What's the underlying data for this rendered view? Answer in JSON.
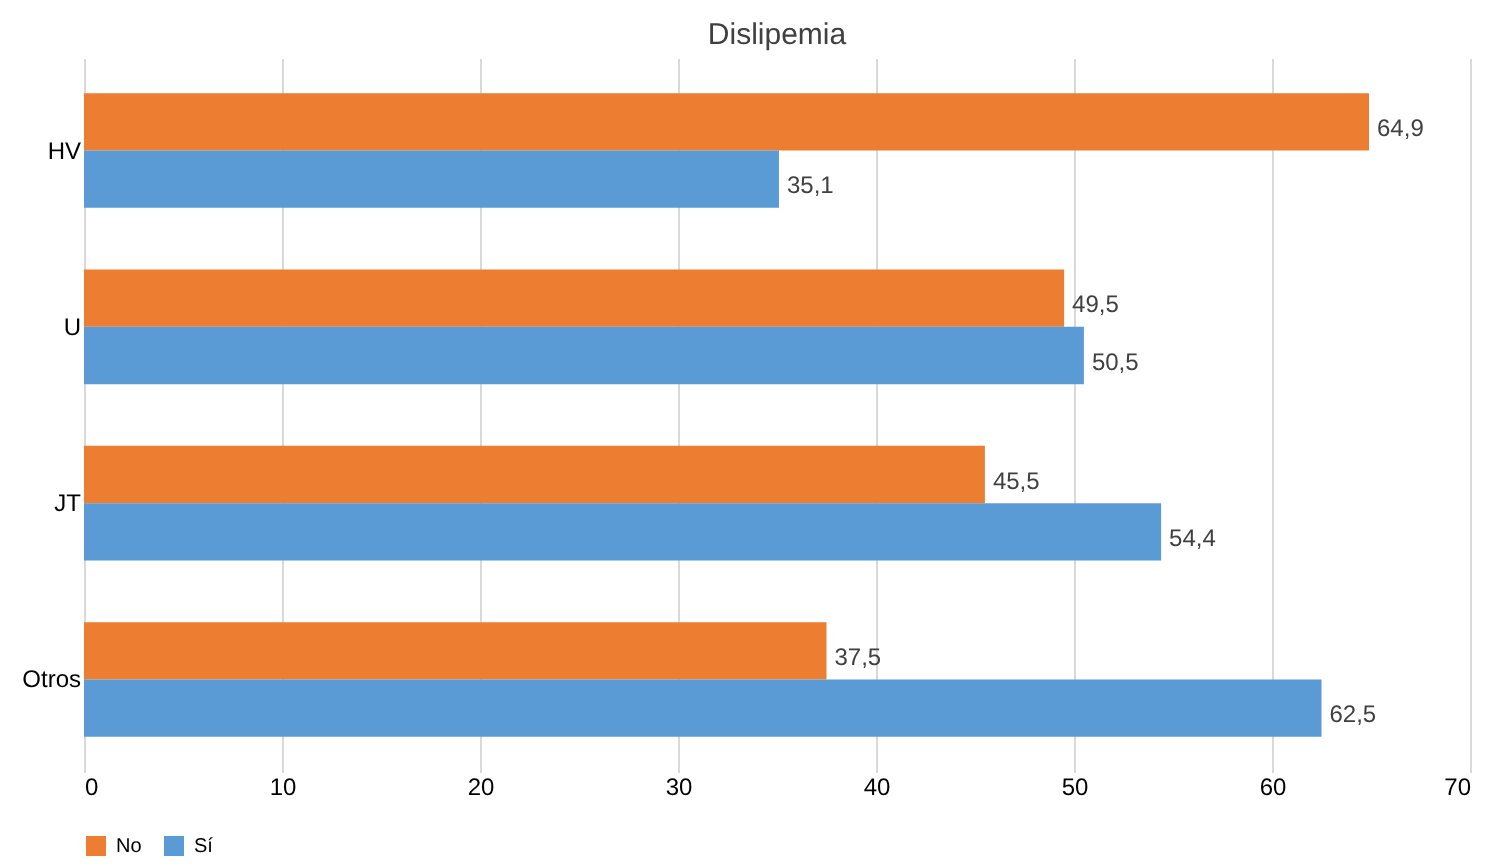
{
  "chart_data": {
    "type": "bar",
    "orientation": "horizontal",
    "title": "Dislipemia",
    "categories": [
      "HV",
      "U",
      "JT",
      "Otros"
    ],
    "series": [
      {
        "name": "No",
        "color": "#ed7d31",
        "values": [
          64.9,
          49.5,
          45.5,
          37.5
        ],
        "value_labels": [
          "64,9",
          "49,5",
          "45,5",
          "37,5"
        ]
      },
      {
        "name": "Sí",
        "color": "#5b9bd5",
        "values": [
          35.1,
          50.5,
          54.4,
          62.5
        ],
        "value_labels": [
          "35,1",
          "50,5",
          "54,4",
          "62,5"
        ]
      }
    ],
    "xlim": [
      0,
      70
    ],
    "xticks": [
      0,
      10,
      20,
      30,
      40,
      50,
      60,
      70
    ],
    "grid": "x",
    "legend": "bottom"
  }
}
